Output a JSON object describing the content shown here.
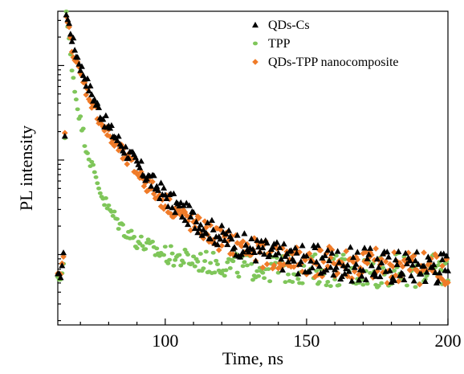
{
  "chart_data": {
    "type": "scatter",
    "xlabel": "Time, ns",
    "ylabel": "PL intensity",
    "xlim": [
      62,
      200
    ],
    "ylim": [
      1.8,
      3750
    ],
    "yscale": "log",
    "x_ticks": [
      100,
      150,
      200
    ],
    "x_tick_labels": [
      "100",
      "150",
      "200"
    ],
    "y_tick_labels_shown": false,
    "grid": false,
    "legend_position": "top-right",
    "colors": {
      "QDs-Cs": "#000000",
      "TPP": "#7fc65a",
      "QDs-TPP nanocomposite": "#f07b28"
    },
    "series": [
      {
        "name": "QDs-Cs",
        "marker": "triangle",
        "x": [
          62,
          63,
          64,
          65,
          66,
          67,
          68,
          70,
          72,
          75,
          78,
          80,
          85,
          90,
          95,
          100,
          105,
          110,
          115,
          120,
          125,
          130,
          140,
          150,
          160,
          170,
          180,
          190,
          200
        ],
        "y": [
          6,
          6,
          10,
          3500,
          2700,
          2000,
          1500,
          1000,
          700,
          430,
          280,
          220,
          140,
          90,
          60,
          42,
          31,
          24,
          19,
          15.5,
          13.2,
          11.8,
          9.8,
          8.8,
          8.2,
          7.8,
          7.6,
          7.5,
          7.4
        ]
      },
      {
        "name": "TPP",
        "marker": "circle",
        "x": [
          62,
          63,
          64,
          65,
          66,
          67,
          68,
          70,
          72,
          75,
          78,
          80,
          85,
          90,
          95,
          100,
          105,
          110,
          115,
          120,
          125,
          130,
          140,
          150,
          160,
          170,
          180,
          190,
          200
        ],
        "y": [
          5.5,
          5.5,
          8,
          3600,
          1800,
          1000,
          550,
          260,
          140,
          70,
          40,
          30,
          19,
          14,
          11.5,
          10,
          9.2,
          8.6,
          8.2,
          7.9,
          7.6,
          7.4,
          7.1,
          7.0,
          6.9,
          6.8,
          6.8,
          6.7,
          6.7
        ]
      },
      {
        "name": "QDs-TPP nanocomposite",
        "marker": "diamond",
        "x": [
          62,
          63,
          64,
          65,
          66,
          67,
          68,
          70,
          72,
          75,
          78,
          80,
          85,
          90,
          95,
          100,
          105,
          110,
          115,
          120,
          125,
          130,
          140,
          150,
          160,
          170,
          180,
          190,
          200
        ],
        "y": [
          6,
          6,
          10,
          3400,
          2300,
          1600,
          1200,
          800,
          560,
          350,
          230,
          180,
          115,
          75,
          50,
          36,
          27,
          21,
          17,
          14.2,
          12.3,
          11,
          9.3,
          8.5,
          8.0,
          7.7,
          7.5,
          7.4,
          7.3
        ]
      }
    ]
  }
}
